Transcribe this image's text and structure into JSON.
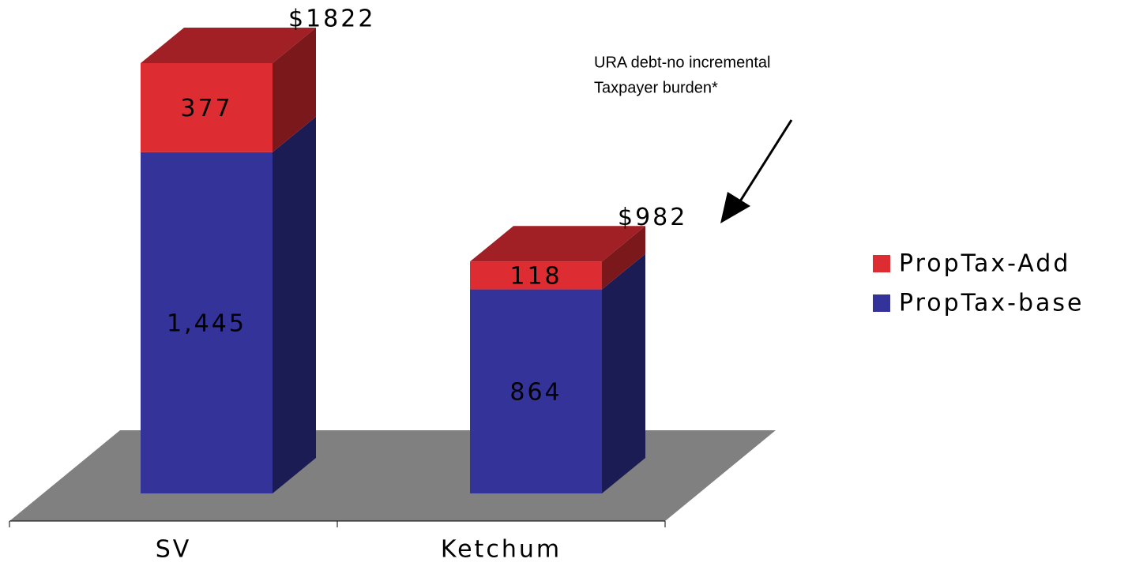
{
  "chart_data": {
    "type": "bar3d_stacked",
    "categories": [
      "SV",
      "Ketchum"
    ],
    "series": [
      {
        "name": "PropTax-base",
        "color": "#333399",
        "values": [
          1445,
          864
        ],
        "value_labels": [
          "1,445",
          "864"
        ]
      },
      {
        "name": "PropTax-Add",
        "color": "#de2c33",
        "values": [
          377,
          118
        ]
      }
    ],
    "total_labels": [
      "$1822",
      "$982"
    ],
    "annotation": [
      "URA debt-no incremental",
      "Taxpayer burden*"
    ],
    "legend": "right"
  }
}
